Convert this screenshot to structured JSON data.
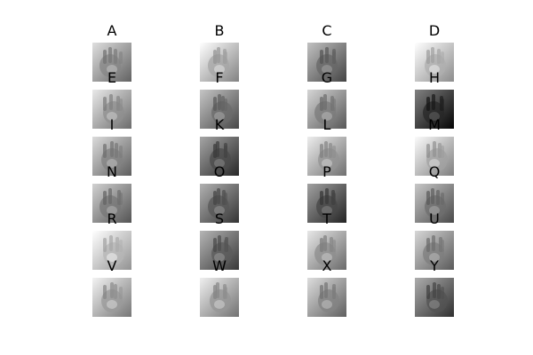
{
  "figure": {
    "columns": 4,
    "panels": [
      {
        "label": "A",
        "tone": "#a8a8a8",
        "subject": "hand-sign-A"
      },
      {
        "label": "B",
        "tone": "#c8c8c8",
        "subject": "hand-sign-B"
      },
      {
        "label": "C",
        "tone": "#8a8a8a",
        "subject": "hand-sign-C"
      },
      {
        "label": "D",
        "tone": "#d2d2d2",
        "subject": "hand-sign-D"
      },
      {
        "label": "E",
        "tone": "#b2b2b2",
        "subject": "hand-sign-E"
      },
      {
        "label": "F",
        "tone": "#8e8e8e",
        "subject": "hand-sign-F"
      },
      {
        "label": "G",
        "tone": "#9e9e9e",
        "subject": "hand-sign-G"
      },
      {
        "label": "H",
        "tone": "#4a4a4a",
        "subject": "hand-sign-H"
      },
      {
        "label": "I",
        "tone": "#a4a4a4",
        "subject": "hand-sign-I"
      },
      {
        "label": "K",
        "tone": "#6e6e6e",
        "subject": "hand-sign-K"
      },
      {
        "label": "L",
        "tone": "#b6b6b6",
        "subject": "hand-sign-L"
      },
      {
        "label": "M",
        "tone": "#c4c4c4",
        "subject": "hand-sign-M"
      },
      {
        "label": "N",
        "tone": "#9a9a9a",
        "subject": "hand-sign-N"
      },
      {
        "label": "O",
        "tone": "#7a7a7a",
        "subject": "hand-sign-O"
      },
      {
        "label": "P",
        "tone": "#6a6a6a",
        "subject": "hand-sign-P"
      },
      {
        "label": "Q",
        "tone": "#909090",
        "subject": "hand-sign-Q"
      },
      {
        "label": "R",
        "tone": "#d8d8d8",
        "subject": "hand-sign-R"
      },
      {
        "label": "S",
        "tone": "#7e7e7e",
        "subject": "hand-sign-S"
      },
      {
        "label": "T",
        "tone": "#b0b0b0",
        "subject": "hand-sign-T"
      },
      {
        "label": "U",
        "tone": "#a0a0a0",
        "subject": "hand-sign-U"
      },
      {
        "label": "V",
        "tone": "#bcbcbc",
        "subject": "hand-sign-V"
      },
      {
        "label": "W",
        "tone": "#b8b8b8",
        "subject": "hand-sign-W"
      },
      {
        "label": "X",
        "tone": "#a6a6a6",
        "subject": "hand-sign-X"
      },
      {
        "label": "Y",
        "tone": "#767676",
        "subject": "hand-sign-Y"
      }
    ]
  }
}
